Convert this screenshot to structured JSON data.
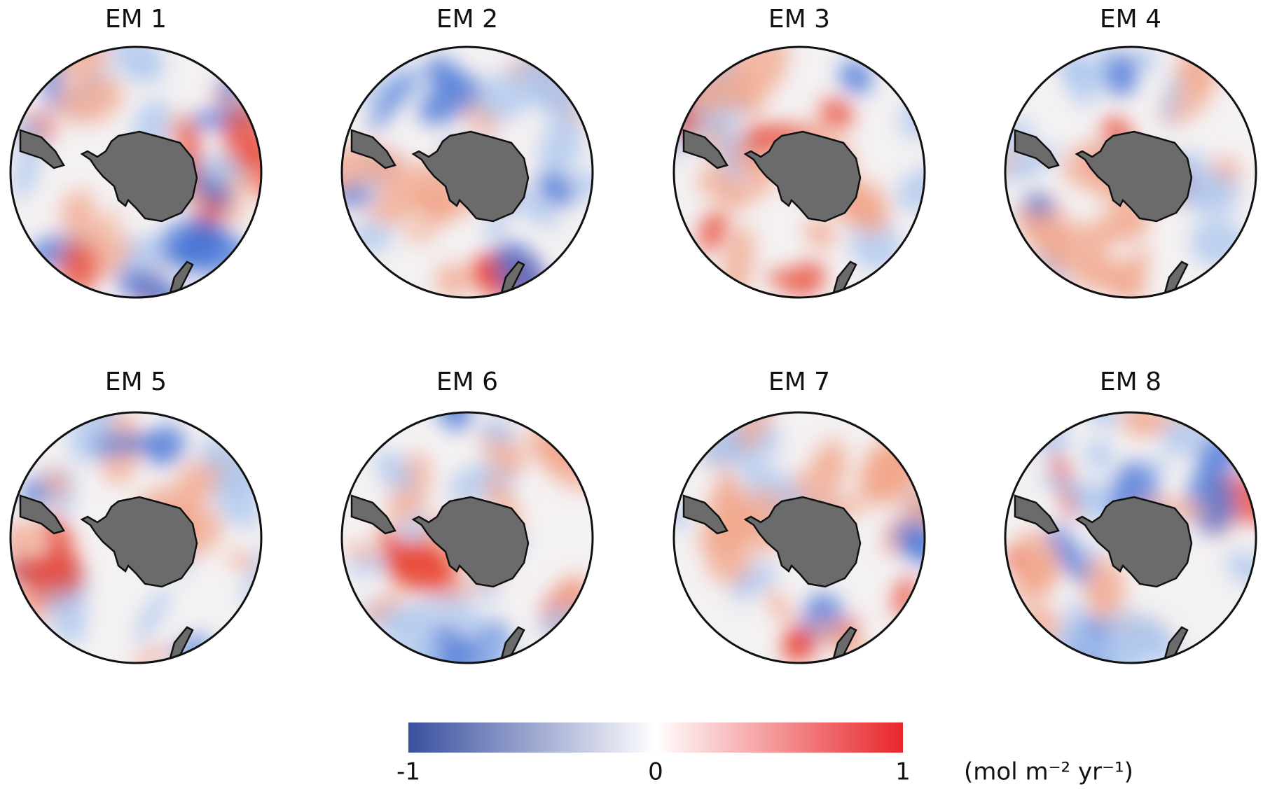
{
  "panels": [
    {
      "title": "EM 1"
    },
    {
      "title": "EM 2"
    },
    {
      "title": "EM 3"
    },
    {
      "title": "EM 4"
    },
    {
      "title": "EM 5"
    },
    {
      "title": "EM 6"
    },
    {
      "title": "EM 7"
    },
    {
      "title": "EM 8"
    }
  ],
  "colorbar": {
    "lim": [
      -1,
      1
    ],
    "ticks": [
      -1,
      0,
      1
    ],
    "colors": [
      "#3a4f9f",
      "#ffffff",
      "#e8262a"
    ],
    "label": "(mol m⁻² yr⁻¹)"
  }
}
